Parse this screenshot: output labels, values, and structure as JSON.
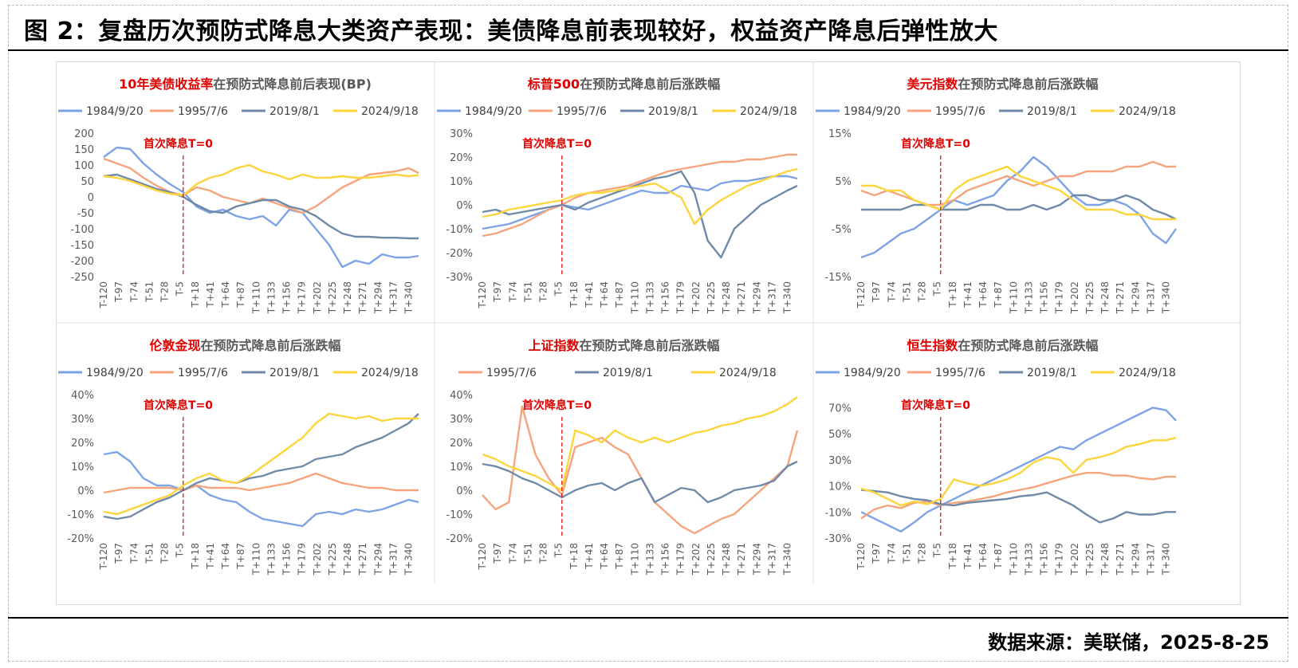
{
  "title": "图 2：复盘历次预防式降息大类资产表现：美债降息前表现较好，权益资产降息后弹性放大",
  "source": "数据来源：美联储，2025-8-25",
  "colors": {
    "1984/9/20": "#7da3e6",
    "1995/7/6": "#f6a47c",
    "2019/8/1": "#6f8aa8",
    "2024/9/18": "#fcd43b",
    "title_highlight": "#e00000",
    "marker": "#e00000"
  },
  "marker_label": "首次降息T=0",
  "x_ticks": [
    "T-120",
    "T-97",
    "T-74",
    "T-51",
    "T-28",
    "T-5",
    "T+18",
    "T+41",
    "T+64",
    "T+87",
    "T+110",
    "T+133",
    "T+156",
    "T+179",
    "T+202",
    "T+225",
    "T+248",
    "T+271",
    "T+294",
    "T+317",
    "T+340"
  ],
  "chart_data": [
    {
      "type": "line",
      "title_highlight": "10年美债收益率",
      "title_rest": "在预防式降息前后表现(BP)",
      "legend": [
        "1984/9/20",
        "1995/7/6",
        "2019/8/1",
        "2024/9/18"
      ],
      "y_ticks": [
        "200",
        "150",
        "100",
        "50",
        "0",
        "-50",
        "-100",
        "-150",
        "-200",
        "-250"
      ],
      "ylim": [
        -250,
        200
      ],
      "x": [
        -120,
        -100,
        -80,
        -60,
        -40,
        -20,
        0,
        20,
        40,
        60,
        80,
        100,
        120,
        140,
        160,
        180,
        200,
        220,
        240,
        260,
        280,
        300,
        320,
        340,
        355
      ],
      "series": [
        {
          "name": "1984/9/20",
          "values": [
            125,
            155,
            150,
            105,
            70,
            40,
            15,
            -30,
            -50,
            -40,
            -60,
            -70,
            -60,
            -90,
            -40,
            -50,
            -100,
            -150,
            -220,
            -200,
            -210,
            -180,
            -190,
            -190,
            -185
          ]
        },
        {
          "name": "1995/7/6",
          "values": [
            120,
            105,
            90,
            60,
            35,
            15,
            5,
            30,
            20,
            0,
            -10,
            -20,
            -5,
            -20,
            -35,
            -50,
            -30,
            0,
            30,
            50,
            70,
            75,
            80,
            90,
            75
          ]
        },
        {
          "name": "2019/8/1",
          "values": [
            65,
            70,
            55,
            40,
            25,
            15,
            0,
            -25,
            -45,
            -50,
            -30,
            -20,
            -10,
            -10,
            -30,
            -40,
            -60,
            -90,
            -115,
            -125,
            -125,
            -128,
            -128,
            -130,
            -130
          ]
        },
        {
          "name": "2024/9/18",
          "values": [
            65,
            60,
            50,
            35,
            20,
            10,
            5,
            40,
            60,
            70,
            90,
            100,
            80,
            70,
            55,
            70,
            60,
            60,
            65,
            60,
            60,
            65,
            70,
            65,
            68
          ]
        }
      ]
    },
    {
      "type": "line",
      "title_highlight": "标普500",
      "title_rest": "在预防式降息前后涨跌幅",
      "legend": [
        "1984/9/20",
        "1995/7/6",
        "2019/8/1",
        "2024/9/18"
      ],
      "y_ticks": [
        "30%",
        "20%",
        "10%",
        "0%",
        "-10%",
        "-20%",
        "-30%"
      ],
      "ylim": [
        -30,
        30
      ],
      "x": [
        -120,
        -100,
        -80,
        -60,
        -40,
        -20,
        0,
        20,
        40,
        60,
        80,
        100,
        120,
        140,
        160,
        180,
        200,
        220,
        240,
        260,
        280,
        300,
        320,
        340,
        355
      ],
      "series": [
        {
          "name": "1984/9/20",
          "values": [
            -10,
            -9,
            -8,
            -6,
            -4,
            -2,
            0,
            -1,
            -2,
            0,
            2,
            4,
            6,
            5,
            5,
            8,
            7,
            6,
            9,
            10,
            10,
            11,
            12,
            12,
            11
          ]
        },
        {
          "name": "1995/7/6",
          "values": [
            -13,
            -12,
            -10,
            -8,
            -5,
            -2,
            0,
            3,
            5,
            6,
            7,
            8,
            10,
            12,
            14,
            15,
            16,
            17,
            18,
            18,
            19,
            19,
            20,
            21,
            21
          ]
        },
        {
          "name": "2019/8/1",
          "values": [
            -3,
            -2,
            -4,
            -3,
            -2,
            -1,
            0,
            -2,
            1,
            3,
            5,
            7,
            9,
            11,
            12,
            14,
            5,
            -15,
            -22,
            -10,
            -5,
            0,
            3,
            6,
            8
          ]
        },
        {
          "name": "2024/9/18",
          "values": [
            -5,
            -4,
            -2,
            -1,
            0,
            1,
            2,
            4,
            5,
            5,
            6,
            7,
            8,
            9,
            6,
            3,
            -8,
            -2,
            2,
            5,
            8,
            10,
            12,
            14,
            15
          ]
        }
      ]
    },
    {
      "type": "line",
      "title_highlight": "美元指数",
      "title_rest": "在预防式降息前后涨跌幅",
      "legend": [
        "1984/9/20",
        "1995/7/6",
        "2019/8/1",
        "2024/9/18"
      ],
      "y_ticks": [
        "15%",
        "5%",
        "-5%",
        "-15%"
      ],
      "ylim": [
        -15,
        15
      ],
      "x": [
        -120,
        -100,
        -80,
        -60,
        -40,
        -20,
        0,
        20,
        40,
        60,
        80,
        100,
        120,
        140,
        160,
        180,
        200,
        220,
        240,
        260,
        280,
        300,
        320,
        340,
        355
      ],
      "series": [
        {
          "name": "1984/9/20",
          "values": [
            -11,
            -10,
            -8,
            -6,
            -5,
            -3,
            -1,
            1,
            0,
            1,
            2,
            5,
            7,
            10,
            8,
            5,
            2,
            0,
            0,
            1,
            0,
            -2,
            -6,
            -8,
            -5
          ]
        },
        {
          "name": "1995/7/6",
          "values": [
            3,
            2,
            3,
            2,
            1,
            0,
            0,
            1,
            3,
            4,
            5,
            6,
            5,
            4,
            5,
            6,
            6,
            7,
            7,
            7,
            8,
            8,
            9,
            8,
            8
          ]
        },
        {
          "name": "2019/8/1",
          "values": [
            -1,
            -1,
            -1,
            -1,
            0,
            0,
            -1,
            -1,
            -1,
            0,
            0,
            -1,
            -1,
            0,
            -1,
            0,
            2,
            2,
            1,
            1,
            2,
            1,
            -1,
            -2,
            -3
          ]
        },
        {
          "name": "2024/9/18",
          "values": [
            4,
            4,
            3,
            3,
            1,
            0,
            -1,
            3,
            5,
            6,
            7,
            8,
            6,
            5,
            4,
            3,
            1,
            -1,
            -1,
            -1,
            -2,
            -2,
            -3,
            -3,
            -3
          ]
        }
      ]
    },
    {
      "type": "line",
      "title_highlight": "伦敦金现",
      "title_rest": "在预防式降息前后涨跌幅",
      "legend": [
        "1984/9/20",
        "1995/7/6",
        "2019/8/1",
        "2024/9/18"
      ],
      "y_ticks": [
        "40%",
        "30%",
        "20%",
        "10%",
        "0%",
        "-10%",
        "-20%"
      ],
      "ylim": [
        -20,
        40
      ],
      "x": [
        -120,
        -100,
        -80,
        -60,
        -40,
        -20,
        0,
        20,
        40,
        60,
        80,
        100,
        120,
        140,
        160,
        180,
        200,
        220,
        240,
        260,
        280,
        300,
        320,
        340,
        355
      ],
      "series": [
        {
          "name": "1984/9/20",
          "values": [
            15,
            16,
            12,
            5,
            2,
            2,
            0,
            2,
            -2,
            -4,
            -5,
            -9,
            -12,
            -13,
            -14,
            -15,
            -10,
            -9,
            -10,
            -8,
            -9,
            -8,
            -6,
            -4,
            -5
          ]
        },
        {
          "name": "1995/7/6",
          "values": [
            -1,
            0,
            1,
            1,
            1,
            1,
            0,
            2,
            1,
            1,
            1,
            0,
            1,
            2,
            3,
            5,
            7,
            5,
            3,
            2,
            1,
            1,
            0,
            0,
            0
          ]
        },
        {
          "name": "2019/8/1",
          "values": [
            -11,
            -12,
            -11,
            -8,
            -5,
            -3,
            0,
            3,
            5,
            4,
            3,
            5,
            6,
            8,
            9,
            10,
            13,
            14,
            15,
            18,
            20,
            22,
            25,
            28,
            32
          ]
        },
        {
          "name": "2024/9/18",
          "values": [
            -9,
            -10,
            -8,
            -6,
            -4,
            -2,
            2,
            5,
            7,
            4,
            3,
            6,
            10,
            14,
            18,
            22,
            28,
            32,
            31,
            30,
            31,
            29,
            30,
            30,
            30
          ]
        }
      ]
    },
    {
      "type": "line",
      "title_highlight": "上证指数",
      "title_rest": "在预防式降息前后涨跌幅",
      "legend": [
        "1995/7/6",
        "2019/8/1",
        "2024/9/18"
      ],
      "y_ticks": [
        "40%",
        "30%",
        "20%",
        "10%",
        "0%",
        "-10%",
        "-20%"
      ],
      "ylim": [
        -20,
        40
      ],
      "x": [
        -120,
        -100,
        -80,
        -60,
        -40,
        -20,
        0,
        20,
        40,
        60,
        80,
        100,
        120,
        140,
        160,
        180,
        200,
        220,
        240,
        260,
        280,
        300,
        320,
        340,
        355
      ],
      "series": [
        {
          "name": "1995/7/6",
          "values": [
            -2,
            -8,
            -5,
            35,
            15,
            5,
            -2,
            18,
            20,
            22,
            18,
            15,
            5,
            -5,
            -10,
            -15,
            -18,
            -15,
            -12,
            -10,
            -5,
            0,
            5,
            10,
            25
          ]
        },
        {
          "name": "2019/8/1",
          "values": [
            11,
            10,
            8,
            5,
            3,
            0,
            -3,
            0,
            2,
            3,
            0,
            3,
            5,
            -5,
            -2,
            1,
            0,
            -5,
            -3,
            0,
            1,
            2,
            4,
            10,
            12
          ]
        },
        {
          "name": "2024/9/18",
          "values": [
            15,
            13,
            10,
            8,
            6,
            3,
            0,
            25,
            23,
            20,
            25,
            22,
            20,
            22,
            20,
            22,
            24,
            25,
            27,
            28,
            30,
            31,
            33,
            36,
            39
          ]
        }
      ]
    },
    {
      "type": "line",
      "title_highlight": "恒生指数",
      "title_rest": "在预防式降息前后涨跌幅",
      "legend": [
        "1984/9/20",
        "1995/7/6",
        "2019/8/1",
        "2024/9/18"
      ],
      "y_ticks": [
        "70%",
        "50%",
        "30%",
        "10%",
        "-10%",
        "-30%"
      ],
      "ylim": [
        -30,
        80
      ],
      "x": [
        -120,
        -100,
        -80,
        -60,
        -40,
        -20,
        0,
        20,
        40,
        60,
        80,
        100,
        120,
        140,
        160,
        180,
        200,
        220,
        240,
        260,
        280,
        300,
        320,
        340,
        355
      ],
      "series": [
        {
          "name": "1984/9/20",
          "values": [
            -10,
            -15,
            -20,
            -25,
            -18,
            -10,
            -5,
            0,
            5,
            10,
            15,
            20,
            25,
            30,
            35,
            40,
            38,
            45,
            50,
            55,
            60,
            65,
            70,
            68,
            60
          ]
        },
        {
          "name": "1995/7/6",
          "values": [
            -15,
            -8,
            -5,
            -7,
            -3,
            -2,
            -5,
            -3,
            -2,
            0,
            2,
            5,
            7,
            9,
            12,
            15,
            18,
            20,
            20,
            18,
            18,
            16,
            15,
            17,
            17
          ]
        },
        {
          "name": "2019/8/1",
          "values": [
            7,
            6,
            5,
            2,
            0,
            -1,
            -4,
            -5,
            -3,
            -2,
            -1,
            0,
            2,
            3,
            5,
            0,
            -5,
            -12,
            -18,
            -15,
            -10,
            -12,
            -12,
            -10,
            -10
          ]
        },
        {
          "name": "2024/9/18",
          "values": [
            8,
            5,
            0,
            -5,
            -2,
            -4,
            0,
            15,
            12,
            10,
            12,
            15,
            20,
            28,
            32,
            30,
            20,
            30,
            32,
            35,
            40,
            42,
            45,
            45,
            47
          ]
        }
      ]
    }
  ]
}
